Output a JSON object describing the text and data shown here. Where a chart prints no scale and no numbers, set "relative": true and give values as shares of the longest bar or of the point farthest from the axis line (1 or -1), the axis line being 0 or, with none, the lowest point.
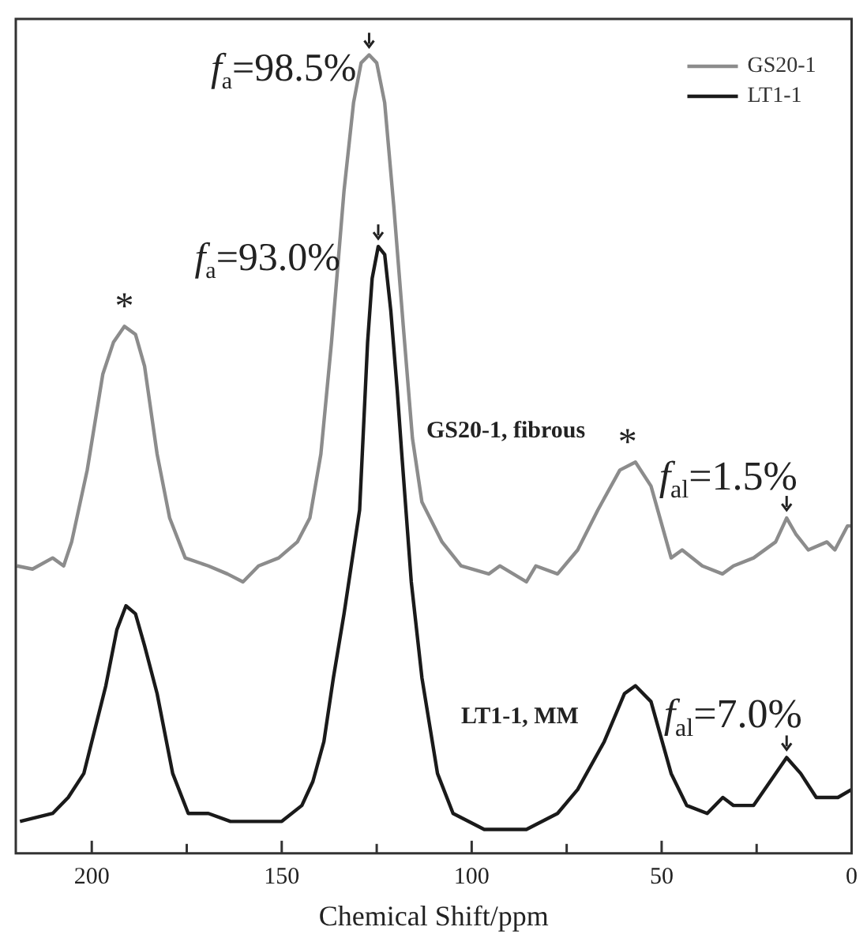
{
  "chart_data": {
    "type": "line",
    "relative": true,
    "xlabel": "Chemical Shift/ppm",
    "xlim": [
      220,
      0
    ],
    "xticks": [
      200,
      {
        "value": 175,
        "label": null
      },
      150,
      {
        "value": 125,
        "label": null
      },
      100,
      {
        "value": 75,
        "label": null
      },
      50,
      {
        "value": 25,
        "label": null
      },
      0
    ],
    "legend": "top right",
    "marker": "none",
    "line_style": "solid",
    "series": [
      {
        "name": "GS20-1",
        "color": "#8c8c8c",
        "x": [
          219.7,
          215.6,
          210.3,
          207.4,
          205.3,
          201.2,
          197.1,
          194.3,
          191.4,
          188.5,
          186.1,
          182.8,
          179.5,
          175.4,
          169.3,
          164.3,
          160.2,
          156.1,
          150.8,
          145.9,
          142.6,
          139.7,
          136.9,
          133.6,
          131.1,
          129.1,
          127.0,
          125.0,
          122.9,
          120.5,
          118.0,
          115.6,
          113.1,
          107.8,
          102.8,
          95.5,
          92.6,
          85.6,
          83.1,
          77.4,
          72.1,
          66.8,
          61.0,
          56.9,
          52.8,
          47.5,
          44.6,
          39.3,
          34.0,
          31.1,
          25.8,
          20.0,
          17.1,
          14.7,
          11.4,
          6.5,
          4.4,
          1.1,
          0
        ],
        "values": [
          0.36,
          0.356,
          0.37,
          0.36,
          0.39,
          0.48,
          0.6,
          0.64,
          0.66,
          0.65,
          0.61,
          0.5,
          0.42,
          0.37,
          0.36,
          0.35,
          0.34,
          0.36,
          0.37,
          0.39,
          0.42,
          0.5,
          0.64,
          0.83,
          0.94,
          0.99,
          1.0,
          0.99,
          0.94,
          0.81,
          0.66,
          0.52,
          0.44,
          0.39,
          0.36,
          0.35,
          0.36,
          0.34,
          0.36,
          0.35,
          0.38,
          0.43,
          0.48,
          0.49,
          0.46,
          0.37,
          0.38,
          0.36,
          0.35,
          0.36,
          0.37,
          0.39,
          0.42,
          0.4,
          0.38,
          0.39,
          0.38,
          0.41,
          0.41
        ]
      },
      {
        "name": "LT1-1",
        "color": "#1a1a1a",
        "x": [
          218.9,
          210.3,
          206.2,
          202.1,
          196.3,
          193.4,
          191.0,
          188.5,
          186.1,
          182.8,
          178.7,
          174.6,
          169.3,
          163.5,
          158.2,
          154.1,
          150.0,
          144.7,
          141.8,
          138.9,
          136.4,
          133.6,
          129.5,
          127.4,
          126.2,
          124.6,
          122.9,
          121.3,
          119.6,
          118.4,
          115.9,
          113.1,
          109.0,
          104.9,
          96.7,
          85.6,
          77.4,
          72.1,
          65.1,
          59.8,
          56.9,
          52.8,
          47.5,
          43.4,
          38.0,
          33.9,
          31.1,
          25.8,
          20.0,
          17.1,
          13.4,
          9.3,
          3.6,
          0
        ],
        "values": [
          0.04,
          0.05,
          0.07,
          0.1,
          0.21,
          0.28,
          0.31,
          0.3,
          0.26,
          0.2,
          0.1,
          0.05,
          0.05,
          0.04,
          0.04,
          0.04,
          0.04,
          0.06,
          0.09,
          0.14,
          0.22,
          0.3,
          0.43,
          0.64,
          0.72,
          0.76,
          0.75,
          0.68,
          0.58,
          0.5,
          0.34,
          0.22,
          0.1,
          0.05,
          0.03,
          0.03,
          0.05,
          0.08,
          0.14,
          0.2,
          0.21,
          0.19,
          0.1,
          0.06,
          0.05,
          0.07,
          0.06,
          0.06,
          0.1,
          0.12,
          0.1,
          0.07,
          0.07,
          0.08
        ]
      }
    ],
    "annotations": [
      {
        "text": "*",
        "x": 191.4,
        "y": 0.66
      },
      {
        "text": "f$_{a}$=98.5%",
        "x": 127.0,
        "y": 1.0
      },
      {
        "text": "f$_{a}$=93.0%",
        "x": 124.6,
        "y": 0.76
      },
      "GS20-1, fibrous",
      {
        "text": "*",
        "x": 59.0,
        "y": 0.49
      },
      {
        "text": "f$_{al}$=1.5%",
        "x": 17.1,
        "y": 0.42
      },
      "LT1-1, MM",
      {
        "text": "f$_{al}$=7.0%",
        "x": 17.1,
        "y": 0.12
      }
    ]
  }
}
